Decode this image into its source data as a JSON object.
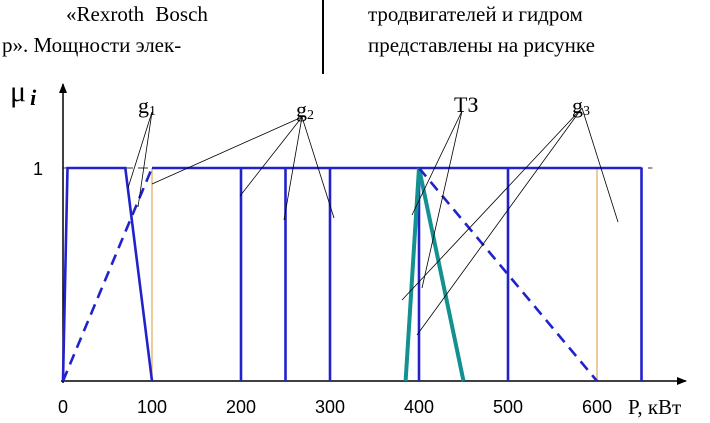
{
  "page_text": {
    "left_line1": "«Rexroth    Bosch",
    "left_line2": "р». Мощности элек-",
    "right_line1": "тродвигателей и гидром",
    "right_line2": "представлены на рисунке"
  },
  "chart_data": {
    "type": "line",
    "xlabel": "P, кВт",
    "ylabel": "μ",
    "ylabel_sub": "i",
    "xlim": [
      0,
      660
    ],
    "ylim": [
      0,
      1
    ],
    "x_ticks": [
      0,
      100,
      200,
      300,
      400,
      500,
      600
    ],
    "x_tick_labels": [
      "0",
      "100",
      "200",
      "300",
      "400",
      "500",
      "600"
    ],
    "y_ticks": [
      1
    ],
    "y_tick_labels": [
      "1"
    ],
    "reference_line_y": 1,
    "vertical_markers_x": [
      100,
      300,
      400,
      600
    ],
    "series": [
      {
        "name": "g1",
        "style": "solid",
        "color": "#2222cc",
        "points": [
          [
            0,
            0
          ],
          [
            5,
            1
          ],
          [
            70,
            1
          ],
          [
            100,
            0
          ]
        ]
      },
      {
        "name": "g1",
        "style": "dashed",
        "color": "#2222cc",
        "points": [
          [
            0,
            0
          ],
          [
            100,
            1
          ]
        ]
      },
      {
        "name": "g2",
        "style": "solid",
        "color": "#2222cc",
        "points": [
          [
            100,
            1
          ],
          [
            400,
            1
          ]
        ]
      },
      {
        "name": "g2",
        "style": "solid",
        "color": "#2222cc",
        "points": [
          [
            200,
            0
          ],
          [
            200,
            1
          ]
        ]
      },
      {
        "name": "g2",
        "style": "solid",
        "color": "#2222cc",
        "points": [
          [
            250,
            0
          ],
          [
            250,
            1
          ]
        ]
      },
      {
        "name": "g2",
        "style": "solid",
        "color": "#2222cc",
        "points": [
          [
            300,
            0
          ],
          [
            300,
            1
          ]
        ]
      },
      {
        "name": "g2",
        "style": "solid",
        "color": "#2222cc",
        "points": [
          [
            400,
            0
          ],
          [
            400,
            1
          ]
        ]
      },
      {
        "name": "ТЗ",
        "style": "solid",
        "color": "#139090",
        "points": [
          [
            385,
            0
          ],
          [
            400,
            1
          ],
          [
            450,
            0
          ]
        ]
      },
      {
        "name": "g3",
        "style": "dashed",
        "color": "#2222cc",
        "points": [
          [
            400,
            1
          ],
          [
            600,
            0
          ]
        ]
      },
      {
        "name": "g3",
        "style": "solid",
        "color": "#2222cc",
        "points": [
          [
            400,
            1
          ],
          [
            650,
            1
          ]
        ]
      },
      {
        "name": "g3",
        "style": "solid",
        "color": "#2222cc",
        "points": [
          [
            500,
            0
          ],
          [
            500,
            1
          ]
        ]
      },
      {
        "name": "g3",
        "style": "solid",
        "color": "#2222cc",
        "points": [
          [
            650,
            0
          ],
          [
            650,
            1
          ]
        ]
      }
    ],
    "annotations": [
      {
        "text": "g",
        "sub": "1"
      },
      {
        "text": "g",
        "sub": "2"
      },
      {
        "text": "ТЗ",
        "sub": ""
      },
      {
        "text": "g",
        "sub": "3"
      }
    ]
  }
}
